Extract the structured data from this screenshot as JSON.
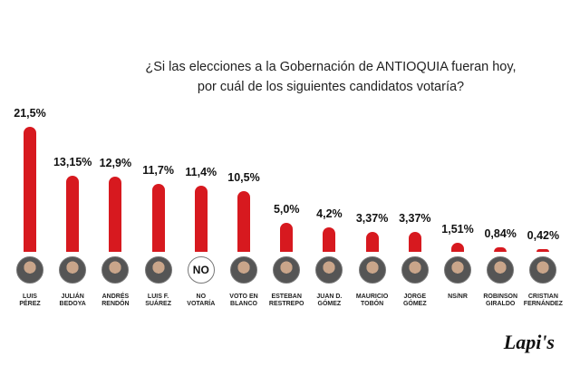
{
  "chart_data": {
    "type": "bar",
    "title": [
      "¿Si las elecciones a la Gobernación de ANTIOQUIA fueran hoy,",
      "por cuál de los siguientes candidatos votaría?"
    ],
    "categories": [
      "LUIS\nPÉREZ",
      "JULIÁN\nBEDOYA",
      "ANDRÉS\nRENDÓN",
      "LUIS F.\nSUÁREZ",
      "NO\nVOTARÍA",
      "VOTO EN\nBLANCO",
      "ESTEBAN\nRESTREPO",
      "JUAN D.\nGÓMEZ",
      "MAURICIO\nTOBÓN",
      "JORGE\nGÓMEZ",
      "NS/NR",
      "ROBINSON\nGIRALDO",
      "CRISTIAN\nFERNÁNDEZ"
    ],
    "values": [
      21.5,
      13.15,
      12.9,
      11.7,
      11.4,
      10.5,
      5.0,
      4.2,
      3.37,
      3.37,
      1.51,
      0.84,
      0.42
    ],
    "value_labels": [
      "21,5%",
      "13,15%",
      "12,9%",
      "11,7%",
      "11,4%",
      "10,5%",
      "5,0%",
      "4,2%",
      "3,37%",
      "3,37%",
      "1,51%",
      "0,84%",
      "0,42%"
    ],
    "avatar_labels": [
      null,
      null,
      null,
      null,
      "NO",
      null,
      null,
      null,
      null,
      null,
      null,
      null,
      null
    ],
    "color": "#d7191f",
    "source": "Lapi's"
  }
}
